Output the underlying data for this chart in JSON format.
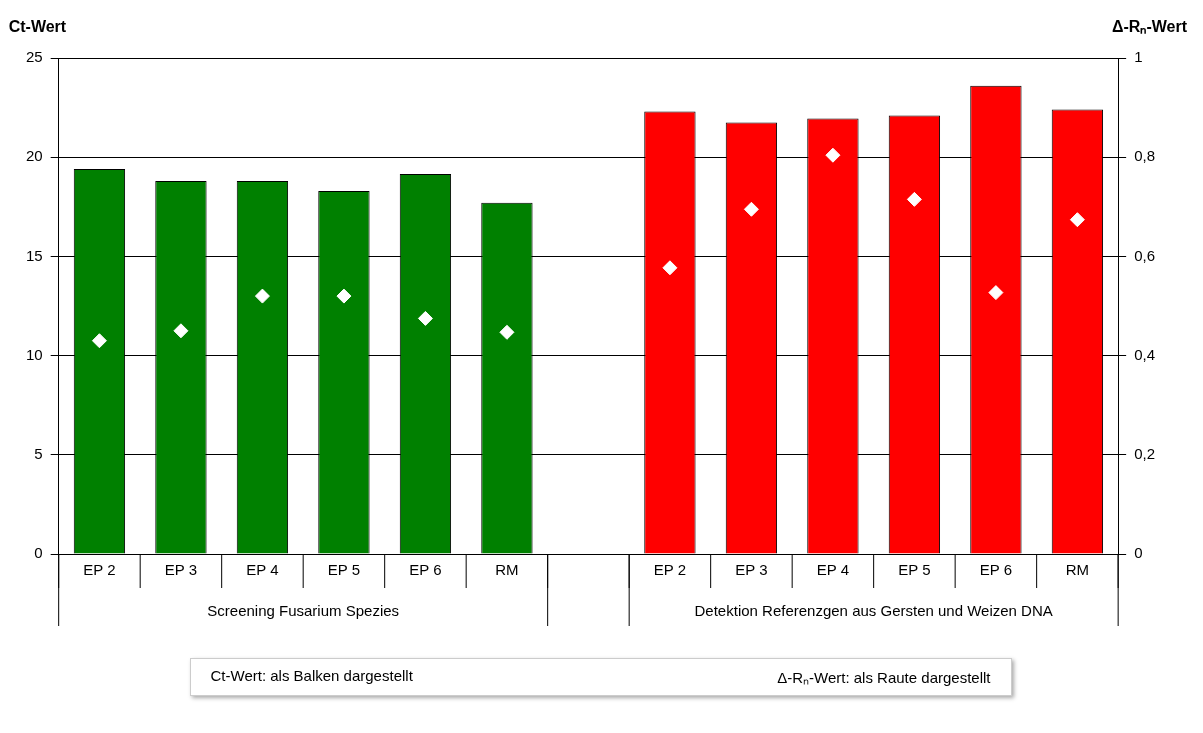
{
  "chart_data": {
    "type": "bar",
    "ylabel": "Ct-Wert",
    "y2label": "Δ-Rₙ-Wert",
    "categories": [
      "EP 2",
      "EP 3",
      "EP 4",
      "EP 5",
      "EP 6",
      "RM",
      null,
      "EP 2",
      "EP 3",
      "EP 4",
      "EP 5",
      "EP 6",
      "RM"
    ],
    "series": [
      {
        "colors": [
          "#008000",
          "#008000",
          "#008000",
          "#008000",
          "#008000",
          "#008000",
          "#008000",
          "#ff0000",
          "#ff0000",
          "#ff0000",
          "#ff0000",
          "#ff0000",
          "#ff0000"
        ],
        "values": [
          19.4,
          18.8,
          18.8,
          18.3,
          19.15,
          17.7,
          null,
          22.3,
          21.75,
          21.95,
          22.1,
          23.6,
          22.4
        ]
      },
      {
        "type": "scatter",
        "axis": "y2",
        "color": "#ffffff",
        "marker": "diamond",
        "values": [
          0.43,
          0.45,
          0.52,
          0.52,
          0.475,
          0.447,
          null,
          0.577,
          0.695,
          0.804,
          0.715,
          0.527,
          0.674
        ]
      }
    ],
    "ylim": [
      0,
      25
    ],
    "yticks": [
      0,
      5,
      10,
      15,
      20,
      25
    ],
    "y2lim": [
      0,
      1
    ],
    "y2ticks": [
      0,
      {
        "value": 0.2,
        "label": "0,2"
      },
      {
        "value": 0.4,
        "label": "0,4"
      },
      {
        "value": 0.6,
        "label": "0,6"
      },
      {
        "value": 0.8,
        "label": "0,8"
      },
      1
    ],
    "grid": "y",
    "legend": false,
    "annotations": [
      "Screening Fusarium Spezies",
      "Detektion Referenzgen aus Gersten und Weizen DNA",
      "Ct-Wert: als Balken dargestellt",
      "Δ-Rₙ-Wert: als Raute dargestellt"
    ]
  }
}
